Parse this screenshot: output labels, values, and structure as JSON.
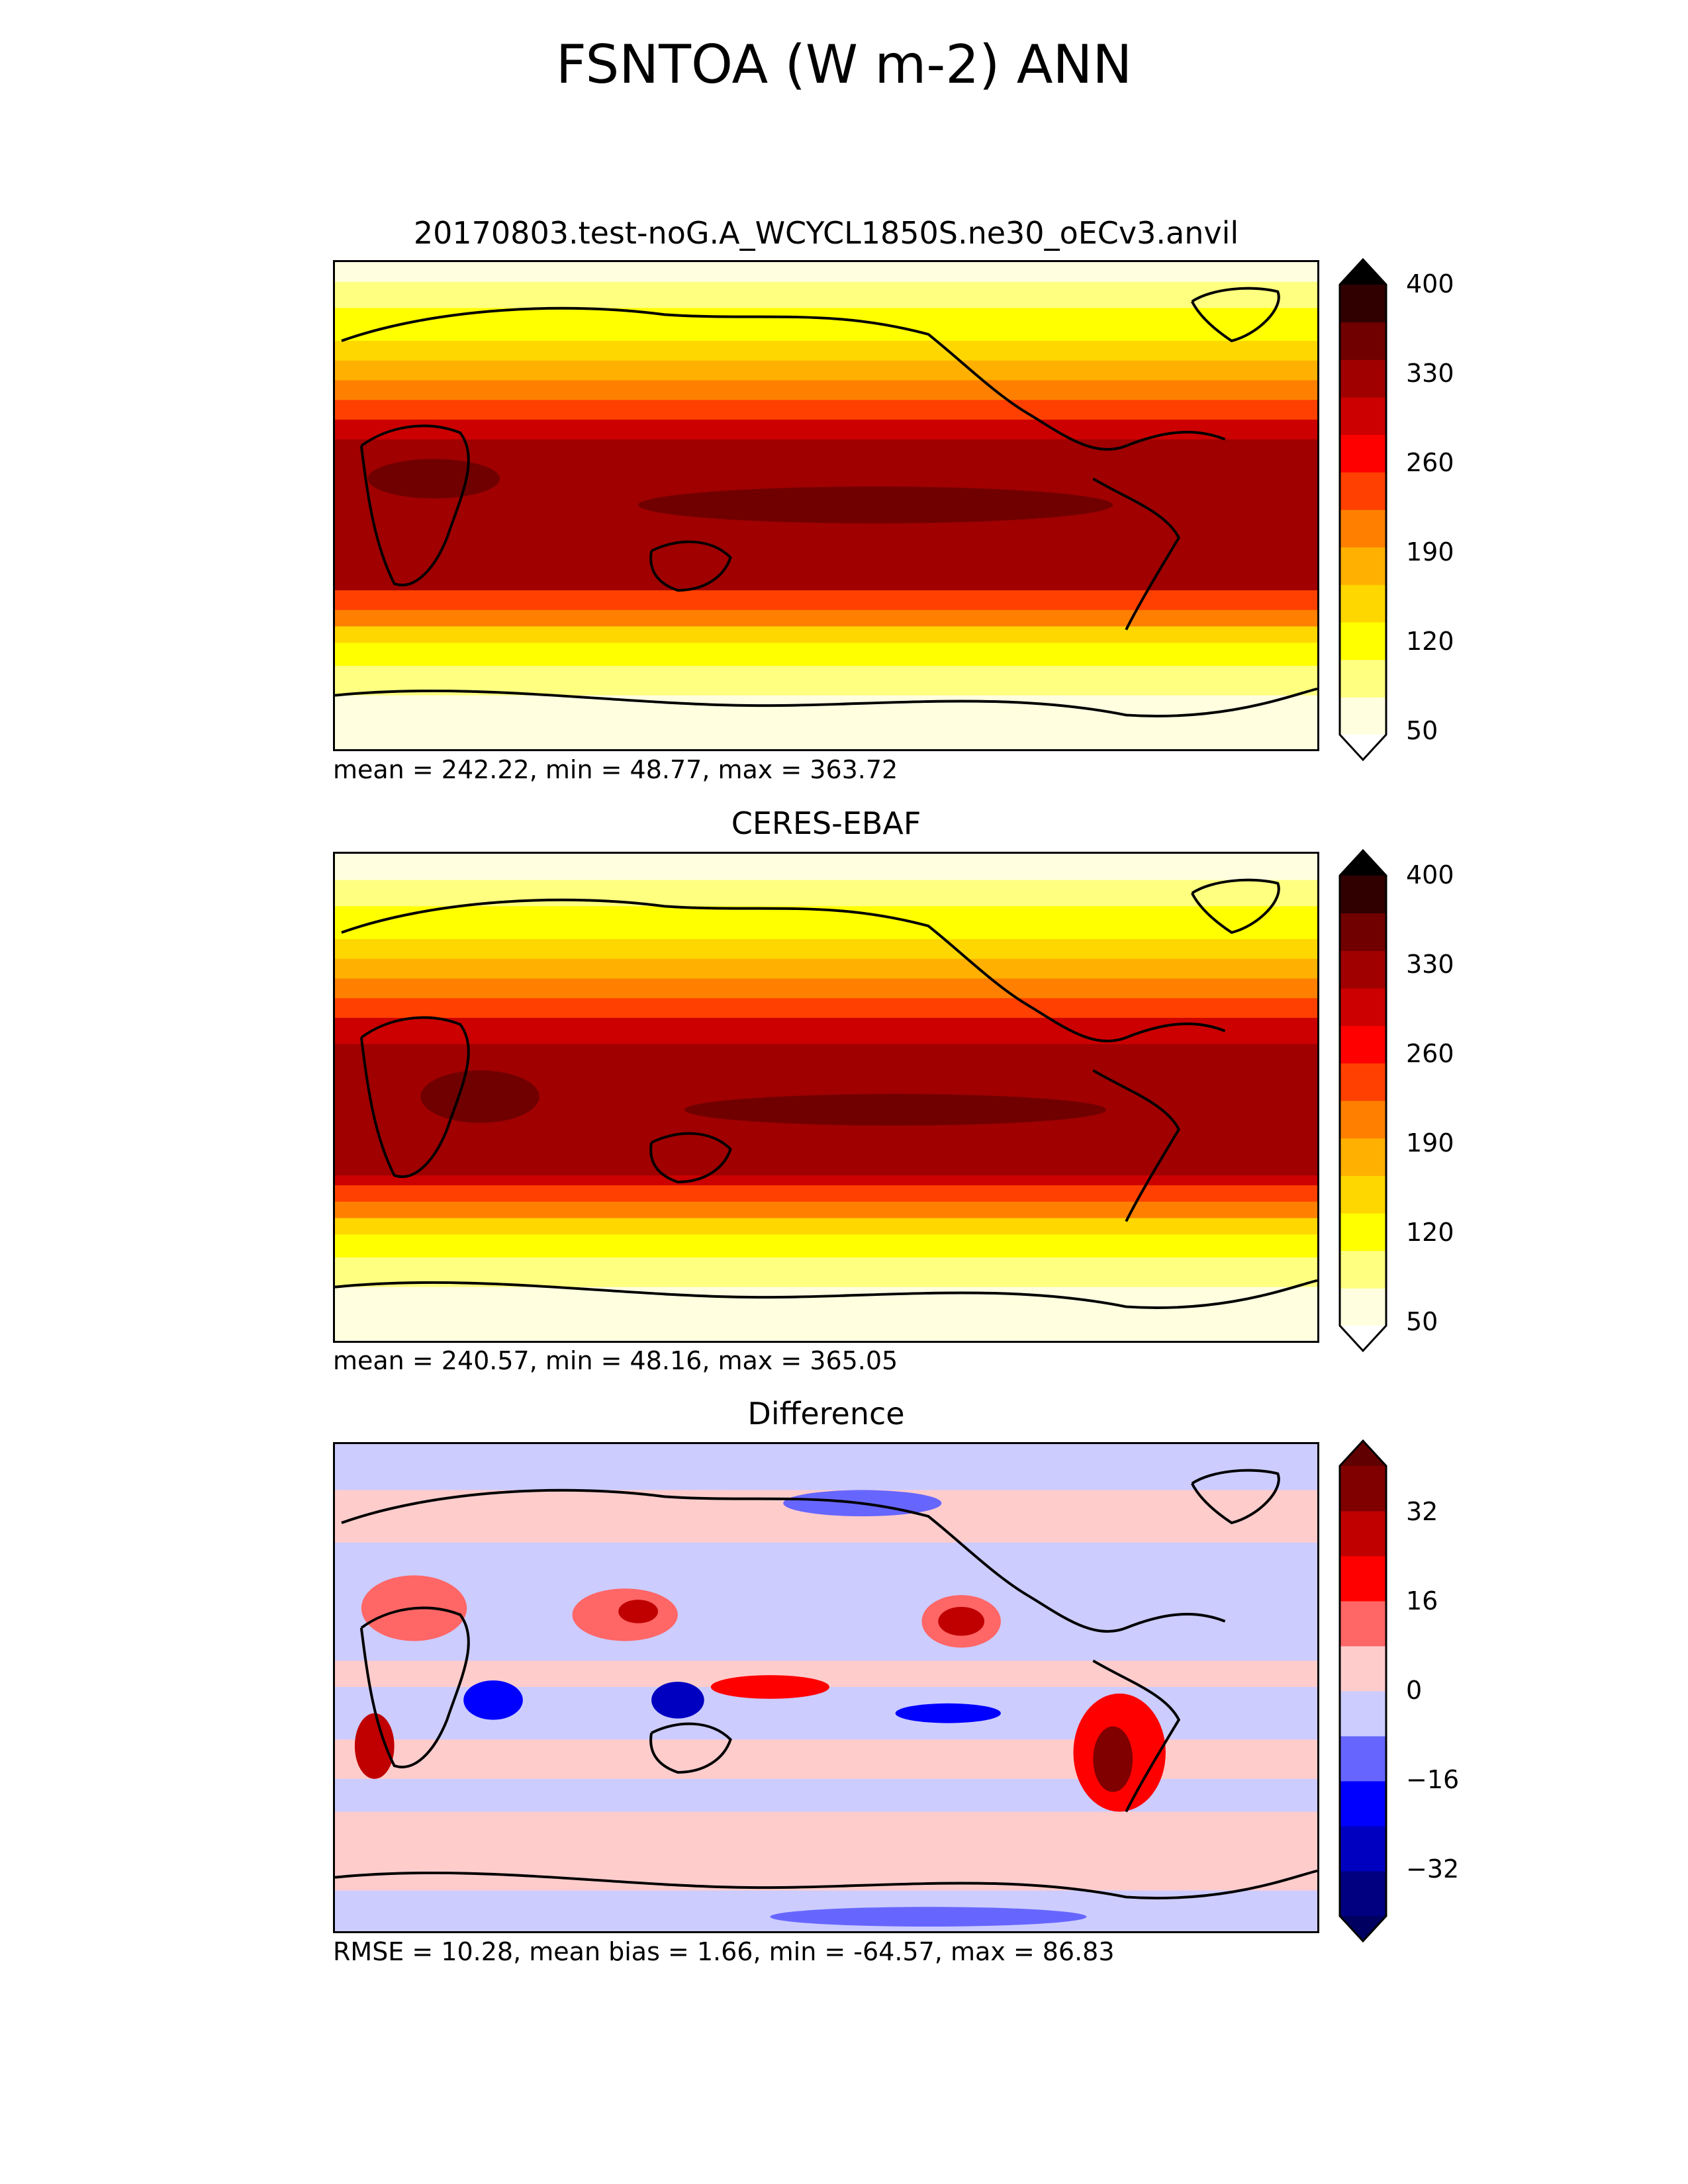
{
  "figure": {
    "title": "FSNTOA (W m-2) ANN"
  },
  "panels": [
    {
      "id": "test",
      "title": "20170803.test-noG.A_WCYCL1850S.ne30_oECv3.anvil",
      "stats": "mean = 242.22, min = 48.77, max = 363.72",
      "colorbar": {
        "ticks": [
          "400",
          "330",
          "260",
          "190",
          "120",
          "50"
        ],
        "colors": [
          "#ffffe0",
          "#ffff80",
          "#ffff00",
          "#ffd700",
          "#ffb000",
          "#ff8000",
          "#ff4000",
          "#ff0000",
          "#cc0000",
          "#a00000",
          "#700000",
          "#300000"
        ],
        "extend_top": "#000000",
        "extend_bottom": "#ffffff"
      }
    },
    {
      "id": "reference",
      "title": "CERES-EBAF",
      "stats": "mean = 240.57, min = 48.16, max = 365.05",
      "colorbar": {
        "ticks": [
          "400",
          "330",
          "260",
          "190",
          "120",
          "50"
        ],
        "colors": [
          "#ffffe0",
          "#ffff80",
          "#ffff00",
          "#ffd700",
          "#ffb000",
          "#ff8000",
          "#ff4000",
          "#ff0000",
          "#cc0000",
          "#a00000",
          "#700000",
          "#300000"
        ],
        "extend_top": "#000000",
        "extend_bottom": "#ffffff"
      }
    },
    {
      "id": "difference",
      "title": "Difference",
      "stats": "RMSE = 10.28, mean bias = 1.66, min = -64.57, max = 86.83",
      "colorbar": {
        "ticks": [
          "32",
          "16",
          "0",
          "−16",
          "−32"
        ],
        "colors": [
          "#000080",
          "#0000c0",
          "#0000ff",
          "#6666ff",
          "#ccccff",
          "#ffcccc",
          "#ff6666",
          "#ff0000",
          "#c00000",
          "#800000"
        ],
        "extend_top": "#600000",
        "extend_bottom": "#000060"
      }
    }
  ]
}
